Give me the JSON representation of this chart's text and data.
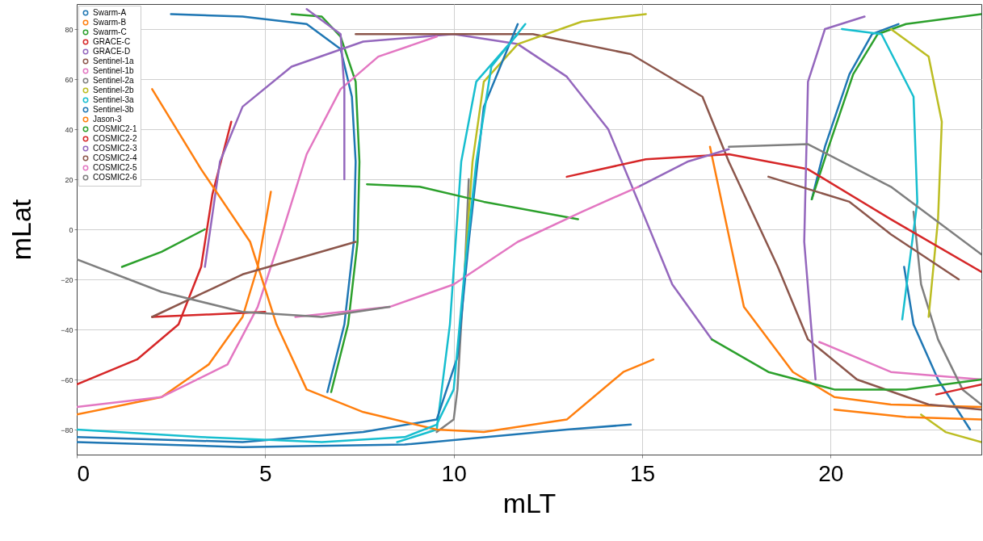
{
  "chart_data": {
    "type": "line",
    "xlabel": "mLT",
    "ylabel": "mLat",
    "xlim": [
      0,
      24
    ],
    "ylim": [
      -90,
      90
    ],
    "xticks": [
      0,
      5,
      10,
      15,
      20
    ],
    "yticks": [
      -80,
      -60,
      -40,
      -20,
      0,
      20,
      40,
      60,
      80
    ],
    "grid": true,
    "legend": "top left",
    "line_style": "solid",
    "series": [
      {
        "name": "Swarm-A",
        "color": "#1f77b4",
        "x": [
          2.5,
          4.4,
          6.1,
          7.0,
          7.3,
          7.4,
          7.35,
          7.1,
          6.65,
          null,
          19.5,
          19.85,
          20.5,
          21.1,
          21.8,
          null,
          21.95,
          22.2,
          22.85,
          23.7
        ],
        "values": [
          86,
          85,
          82,
          72,
          53,
          27,
          -5,
          -38,
          -65,
          null,
          12,
          33,
          62,
          78,
          82,
          null,
          -15,
          -38,
          -60,
          -80
        ]
      },
      {
        "name": "Swarm-B",
        "color": "#ff7f0e",
        "x": [
          0,
          2.25,
          3.5,
          4.4,
          4.8,
          5.15,
          null,
          16.8,
          17.7,
          19.0,
          20.1,
          21.6,
          24.0
        ],
        "values": [
          -74,
          -67,
          -54,
          -35,
          -15,
          15,
          null,
          33,
          -31,
          -57,
          -67,
          -70,
          -71
        ]
      },
      {
        "name": "Swarm-C",
        "color": "#2ca02c",
        "x": [
          5.7,
          6.5,
          7.0,
          7.4,
          7.5,
          7.45,
          7.2,
          6.75,
          null,
          19.5,
          19.95,
          20.6,
          21.25,
          22.0,
          24.0
        ],
        "values": [
          86,
          85,
          77,
          59,
          27,
          -5,
          -38,
          -65,
          null,
          12,
          33,
          62,
          78,
          82,
          86
        ]
      },
      {
        "name": "GRACE-C",
        "color": "#d62728",
        "x": [
          0,
          1.6,
          2.7,
          3.3,
          3.6,
          4.1
        ],
        "values": [
          -62,
          -52,
          -38,
          -15,
          14,
          43
        ]
      },
      {
        "name": "GRACE-D",
        "color": "#9467bd",
        "x": [
          3.4,
          3.8,
          4.4,
          5.7,
          7.6,
          10.0,
          11.7,
          13.0,
          14.1,
          14.9,
          15.8,
          16.85
        ],
        "values": [
          -15,
          27,
          49,
          65,
          75,
          78,
          74,
          61,
          40,
          11,
          -22,
          -44
        ]
      },
      {
        "name": "Sentinel-1a",
        "color": "#8c564b",
        "x": [
          7.4,
          10.0,
          12.1,
          14.7,
          16.6,
          17.3,
          18.6,
          19.4,
          20.7,
          22.6,
          24.0
        ],
        "values": [
          78,
          78,
          78,
          70,
          53,
          27,
          -15,
          -44,
          -60,
          -70,
          -72
        ]
      },
      {
        "name": "Sentinel-1b",
        "color": "#e377c2",
        "x": [
          0,
          2.25,
          4.0,
          4.8,
          5.5,
          6.1,
          7.0,
          8.0,
          9.55,
          null,
          19.7,
          21.6,
          24.0
        ],
        "values": [
          -71,
          -67,
          -54,
          -31,
          1,
          30,
          56,
          69,
          77,
          null,
          -45,
          -57,
          -60
        ]
      },
      {
        "name": "Sentinel-2a",
        "color": "#7f7f7f",
        "x": [
          9.55,
          10.0,
          10.1,
          10.2,
          10.3,
          10.4,
          null,
          22.2,
          22.4,
          22.85,
          23.5,
          24.0
        ],
        "values": [
          -81,
          -76,
          -64,
          -38,
          -15,
          20,
          null,
          7,
          -22,
          -44,
          -64,
          -70
        ]
      },
      {
        "name": "Sentinel-2b",
        "color": "#bcbd22",
        "x": [
          10.3,
          10.5,
          10.8,
          11.7,
          13.4,
          15.1,
          null,
          21.6,
          22.6,
          22.95,
          22.85,
          22.6
        ],
        "values": [
          -15,
          27,
          59,
          74,
          83,
          86,
          null,
          80,
          69,
          43,
          4,
          -35
        ]
      },
      {
        "name": "Sentinel-3a",
        "color": "#17becf",
        "x": [
          8.5,
          9.55,
          9.9,
          10.2,
          10.6,
          11.7,
          null,
          20.3,
          21.35,
          22.2,
          22.3,
          21.9
        ],
        "values": [
          -85,
          -80,
          -38,
          27,
          59,
          78,
          null,
          80,
          78,
          53,
          11,
          -36
        ]
      },
      {
        "name": "Sentinel-3b",
        "color": "#1f77b4",
        "x": [
          0,
          4.4,
          7.6,
          9.55,
          10.1,
          10.4,
          10.8,
          11.7
        ],
        "values": [
          -83,
          -85,
          -81,
          -76,
          -51,
          -5,
          49,
          82
        ]
      },
      {
        "name": "Jason-3",
        "color": "#ff7f0e",
        "x": [
          2.0,
          3.3,
          4.6,
          5.3,
          6.1,
          7.6,
          9.55,
          10.8,
          13.0,
          14.5,
          15.3
        ],
        "values": [
          56,
          24,
          -5,
          -38,
          -64,
          -73,
          -80,
          -81,
          -76,
          -57,
          -52
        ]
      },
      {
        "name": "COSMIC2-1",
        "color": "#2ca02c",
        "x": [
          1.2,
          2.25,
          3.4,
          null,
          7.7,
          9.1,
          10.8,
          13.3
        ],
        "values": [
          -15,
          -9,
          0,
          null,
          18,
          17,
          11,
          4
        ]
      },
      {
        "name": "COSMIC2-2",
        "color": "#d62728",
        "x": [
          2.0,
          3.5,
          5.0,
          null,
          13.0,
          15.1,
          17.3,
          19.4,
          21.6,
          24.0
        ],
        "values": [
          -35,
          -34,
          -33,
          null,
          21,
          28,
          30,
          24,
          4,
          -17
        ]
      },
      {
        "name": "COSMIC2-3",
        "color": "#9467bd",
        "x": [
          14.9,
          16.2,
          17.3,
          null,
          19.6,
          19.3,
          19.4,
          19.85,
          20.9
        ],
        "values": [
          17,
          27,
          32,
          null,
          -60,
          -5,
          59,
          80,
          85
        ]
      },
      {
        "name": "COSMIC2-4",
        "color": "#8c564b",
        "x": [
          2.0,
          4.4,
          7.4,
          null,
          18.35,
          20.5,
          21.6,
          23.4
        ],
        "values": [
          -35,
          -18,
          -5,
          null,
          21,
          11,
          -2,
          -20
        ]
      },
      {
        "name": "COSMIC2-5",
        "color": "#e377c2",
        "x": [
          5.8,
          8.3,
          10.0,
          11.7,
          13.4,
          14.9
        ],
        "values": [
          -35,
          -31,
          -22,
          -5,
          7,
          17
        ]
      },
      {
        "name": "COSMIC2-6",
        "color": "#7f7f7f",
        "x": [
          0,
          2.25,
          4.4,
          6.5,
          8.3,
          null,
          17.3,
          19.4,
          21.6,
          24.0
        ],
        "values": [
          -12,
          -25,
          -33,
          -35,
          -31,
          null,
          33,
          34,
          17,
          -10
        ]
      },
      {
        "color": "#bcbd22",
        "x": [
          22.4,
          23.05,
          24.0
        ],
        "values": [
          -74,
          -81,
          -85
        ]
      },
      {
        "color": "#17becf",
        "x": [
          0,
          3.3,
          6.5,
          8.7,
          9.55,
          10.0,
          10.3,
          10.6,
          11.0,
          11.9
        ],
        "values": [
          -80,
          -83,
          -85,
          -83,
          -78,
          -64,
          -15,
          27,
          65,
          82
        ]
      },
      {
        "color": "#1f77b4",
        "x": [
          0,
          4.4,
          8.7,
          13.0,
          14.7
        ],
        "values": [
          -85,
          -87,
          -86,
          -80,
          -78
        ]
      },
      {
        "color": "#ff7f0e",
        "x": [
          20.1,
          22.0,
          24.0
        ],
        "values": [
          -72,
          -75,
          -76
        ]
      },
      {
        "color": "#2ca02c",
        "x": [
          16.85,
          18.35,
          20.1,
          22.0,
          24.0
        ],
        "values": [
          -44,
          -57,
          -64,
          -64,
          -60
        ]
      },
      {
        "color": "#d62728",
        "x": [
          22.8,
          23.4,
          24.0
        ],
        "values": [
          -66,
          -64,
          -62
        ]
      },
      {
        "color": "#9467bd",
        "x": [
          6.1,
          7.0,
          7.1,
          7.1
        ],
        "values": [
          88,
          78,
          56,
          20
        ]
      }
    ]
  }
}
